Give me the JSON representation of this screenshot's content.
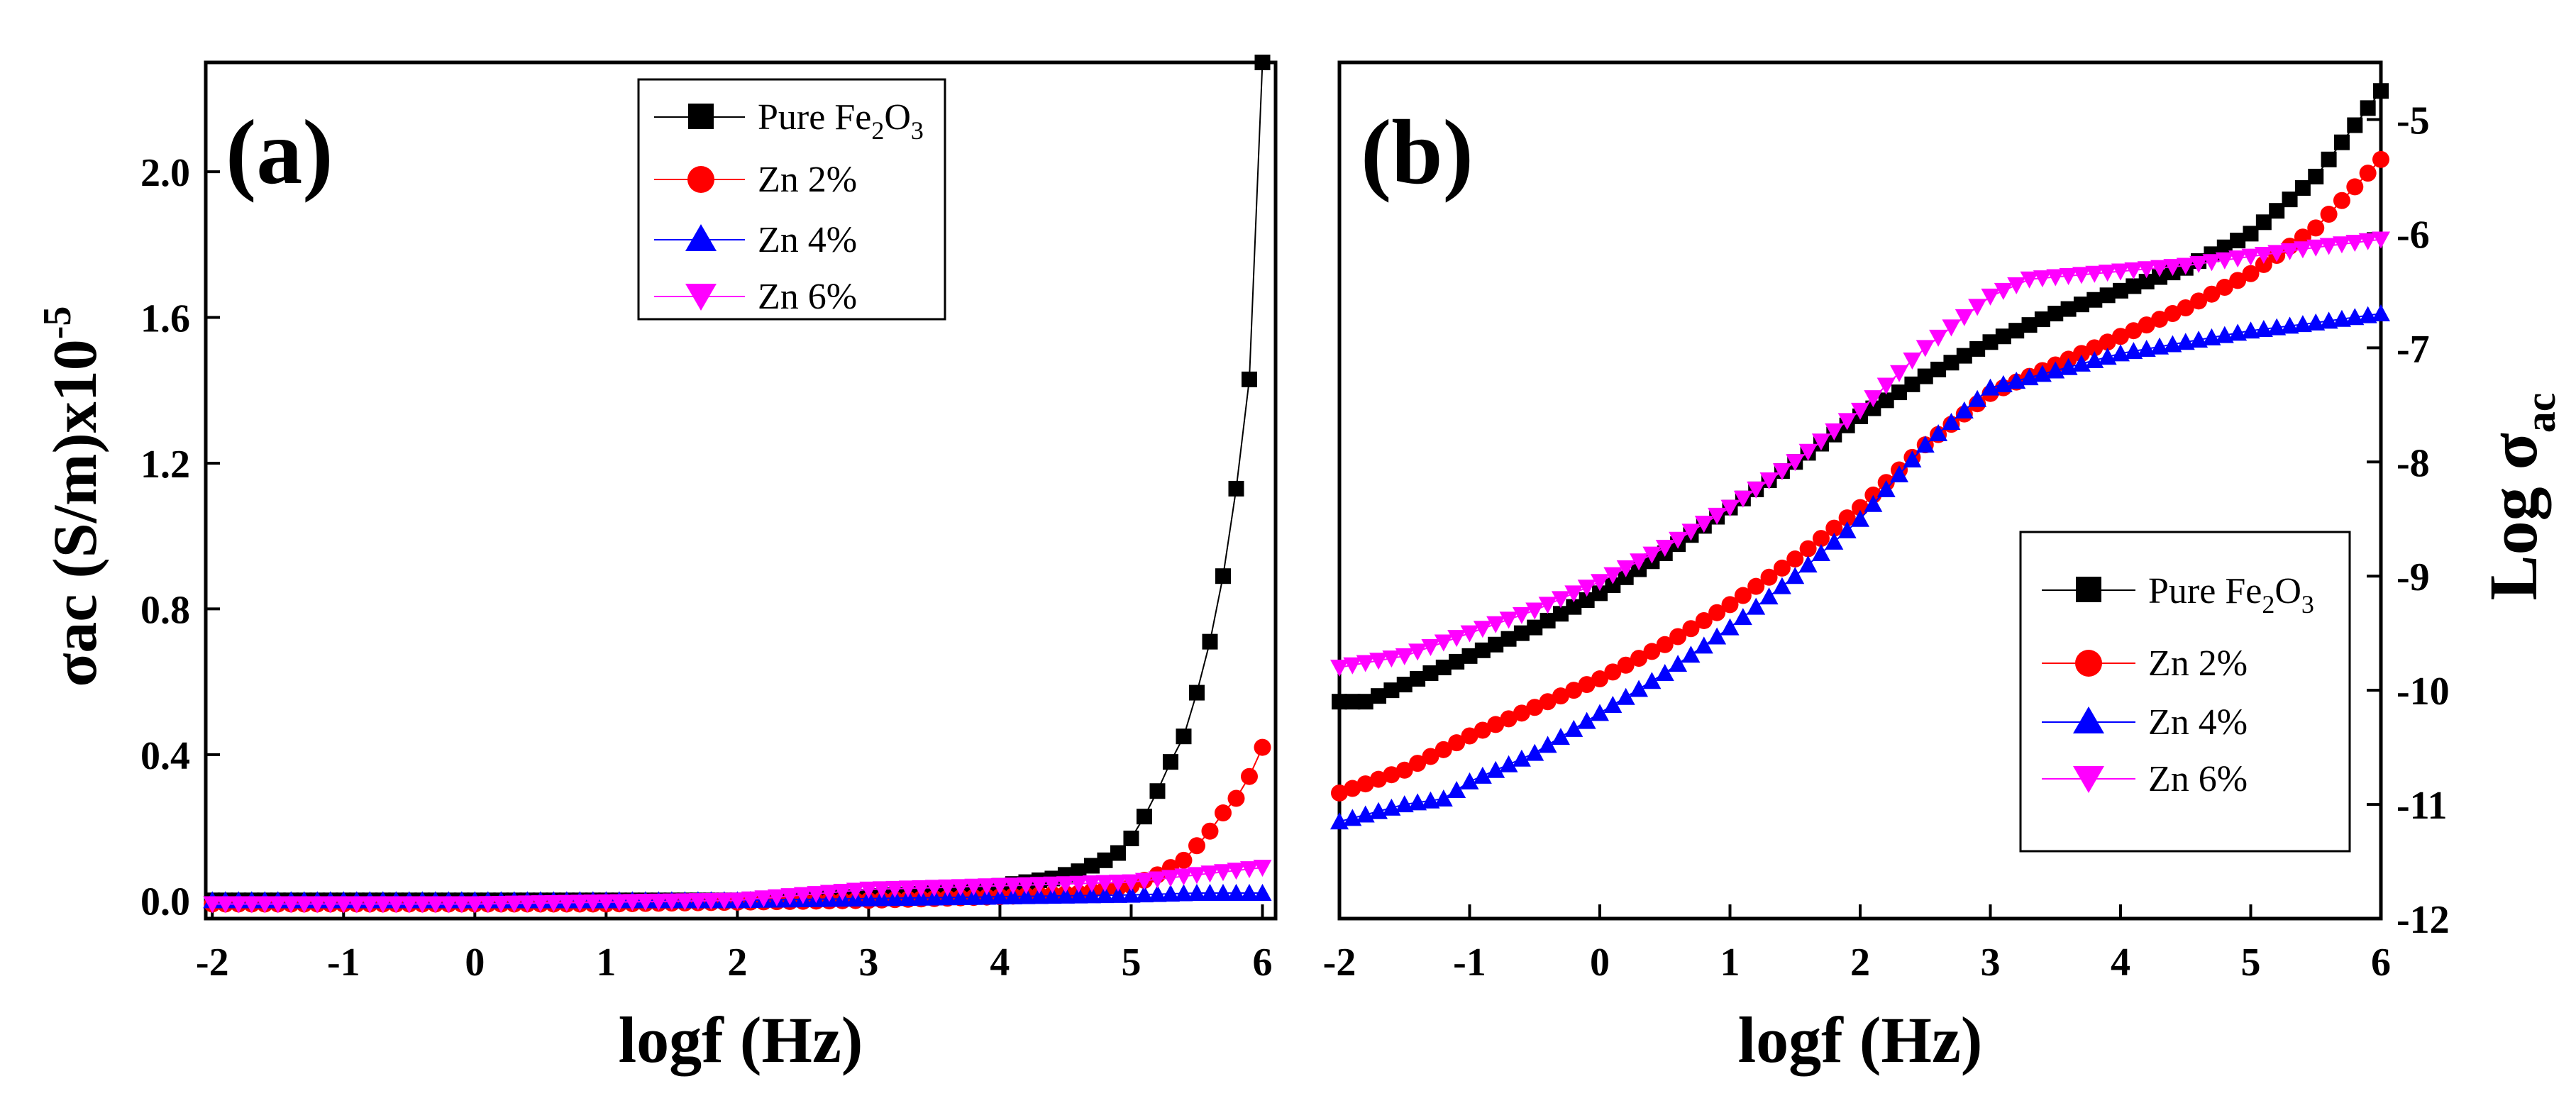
{
  "figure": {
    "panels_label": "Two-panel AC conductivity plot"
  },
  "colors": {
    "pure": "#000000",
    "zn2": "#ff0000",
    "zn4": "#0000ff",
    "zn6": "#ff00ff",
    "axis": "#000000",
    "frame": "#000000"
  },
  "chart_data": [
    {
      "id": "a",
      "type": "line",
      "panel_label": "(a)",
      "xlabel": "logf (Hz)",
      "ylabel_main": "σac (S/m)x10",
      "ylabel_exp": "-5",
      "xlim": [
        -2.05,
        6.1
      ],
      "ylim": [
        -0.05,
        2.3
      ],
      "x_ticks": [
        "-2",
        "-1",
        "0",
        "1",
        "2",
        "3",
        "4",
        "5",
        "6"
      ],
      "y_ticks": [
        "0.0",
        "0.4",
        "0.8",
        "1.2",
        "1.6",
        "2.0"
      ],
      "y_tick_values": [
        0.0,
        0.4,
        0.8,
        1.2,
        1.6,
        2.0
      ],
      "legend_position": "top-center",
      "series": [
        {
          "name": "Pure Fe2O3",
          "key": "pure",
          "marker": "square",
          "x": [
            -2,
            -1,
            0,
            1,
            2,
            3,
            3.5,
            4,
            4.4,
            4.6,
            4.8,
            4.9,
            5.0,
            5.1,
            5.2,
            5.3,
            5.4,
            5.5,
            5.6,
            5.7,
            5.8,
            5.9,
            6.0
          ],
          "values": [
            0.0,
            0.0,
            0.0,
            0.0,
            0.0,
            0.01,
            0.02,
            0.04,
            0.06,
            0.08,
            0.11,
            0.13,
            0.17,
            0.23,
            0.3,
            0.38,
            0.45,
            0.57,
            0.71,
            0.89,
            1.13,
            1.43,
            2.3
          ]
        },
        {
          "name": "Zn 2%",
          "key": "zn2",
          "marker": "circle",
          "x": [
            -2,
            -1,
            0,
            1,
            2,
            3,
            4,
            4.6,
            5.0,
            5.2,
            5.4,
            5.5,
            5.6,
            5.7,
            5.8,
            5.9,
            6.0
          ],
          "values": [
            -0.01,
            -0.01,
            -0.01,
            -0.01,
            -0.005,
            0.0,
            0.01,
            0.02,
            0.04,
            0.07,
            0.11,
            0.15,
            0.19,
            0.24,
            0.28,
            0.34,
            0.42
          ]
        },
        {
          "name": "Zn 4%",
          "key": "zn4",
          "marker": "triangle-up",
          "x": [
            -2,
            -1,
            0,
            1,
            2,
            3,
            4,
            5,
            5.5,
            6.0
          ],
          "values": [
            0.0,
            0.0,
            0.0,
            0.0,
            0.0,
            0.005,
            0.01,
            0.015,
            0.02,
            0.02
          ]
        },
        {
          "name": "Zn 6%",
          "key": "zn6",
          "marker": "triangle-down",
          "x": [
            -2,
            -1,
            0,
            1,
            2,
            3,
            4,
            5,
            5.5,
            6.0
          ],
          "values": [
            -0.01,
            -0.01,
            -0.01,
            -0.005,
            0.0,
            0.03,
            0.04,
            0.05,
            0.07,
            0.09
          ]
        }
      ]
    },
    {
      "id": "b",
      "type": "line",
      "panel_label": "(b)",
      "xlabel": "logf (Hz)",
      "ylabel_main": "Log σ",
      "ylabel_sub": "ac",
      "xlim": [
        -2,
        6
      ],
      "ylim": [
        -12,
        -4.5
      ],
      "x_ticks": [
        "-2",
        "-1",
        "0",
        "1",
        "2",
        "3",
        "4",
        "5",
        "6"
      ],
      "y_ticks": [
        "-12",
        "-11",
        "-10",
        "-9",
        "-8",
        "-7",
        "-6",
        "-5"
      ],
      "y_tick_values": [
        -12,
        -11,
        -10,
        -9,
        -8,
        -7,
        -6,
        -5
      ],
      "y_axis_side": "right",
      "legend_position": "bottom-right",
      "series": [
        {
          "name": "Pure Fe2O3",
          "key": "pure",
          "marker": "square",
          "x": [
            -2,
            -1.8,
            -1.5,
            -1,
            -0.5,
            0,
            0.5,
            1,
            1.5,
            2,
            2.5,
            3,
            3.5,
            4,
            4.5,
            5,
            5.5,
            6
          ],
          "values": [
            -10.1,
            -10.1,
            -9.95,
            -9.7,
            -9.45,
            -9.15,
            -8.8,
            -8.4,
            -8.0,
            -7.6,
            -7.25,
            -6.95,
            -6.7,
            -6.5,
            -6.3,
            -6.0,
            -5.5,
            -4.75
          ]
        },
        {
          "name": "Zn 2%",
          "key": "zn2",
          "marker": "circle",
          "x": [
            -2,
            -1.5,
            -1,
            -0.5,
            0,
            0.5,
            1,
            1.5,
            2,
            2.5,
            3,
            3.5,
            4,
            4.5,
            5,
            5.5,
            6
          ],
          "values": [
            -10.9,
            -10.7,
            -10.4,
            -10.15,
            -9.9,
            -9.6,
            -9.25,
            -8.85,
            -8.4,
            -7.85,
            -7.4,
            -7.15,
            -6.9,
            -6.65,
            -6.35,
            -5.95,
            -5.35
          ]
        },
        {
          "name": "Zn 4%",
          "key": "zn4",
          "marker": "triangle-up",
          "x": [
            -2,
            -1.5,
            -1.2,
            -1,
            -0.5,
            0,
            0.5,
            1,
            1.5,
            2,
            2.5,
            3,
            3.5,
            4,
            4.5,
            5,
            5.5,
            6
          ],
          "values": [
            -11.15,
            -11.0,
            -10.95,
            -10.8,
            -10.55,
            -10.2,
            -9.85,
            -9.45,
            -9.0,
            -8.5,
            -7.85,
            -7.35,
            -7.2,
            -7.05,
            -6.95,
            -6.85,
            -6.78,
            -6.7
          ]
        },
        {
          "name": "Zn 6%",
          "key": "zn6",
          "marker": "triangle-down",
          "x": [
            -2,
            -1.5,
            -1,
            -0.5,
            0,
            0.5,
            1,
            1.5,
            2,
            2.5,
            3,
            3.3,
            3.5,
            4,
            4.5,
            5,
            5.5,
            6
          ],
          "values": [
            -9.8,
            -9.7,
            -9.5,
            -9.3,
            -9.05,
            -8.75,
            -8.4,
            -8.0,
            -7.55,
            -7.0,
            -6.55,
            -6.4,
            -6.38,
            -6.33,
            -6.28,
            -6.2,
            -6.12,
            -6.05
          ]
        }
      ]
    }
  ],
  "legend": {
    "pure_prefix": "Pure Fe",
    "pure_sub1": "2",
    "pure_mid": "O",
    "pure_sub2": "3",
    "zn2": "Zn 2%",
    "zn4": "Zn 4%",
    "zn6": "Zn 6%"
  }
}
